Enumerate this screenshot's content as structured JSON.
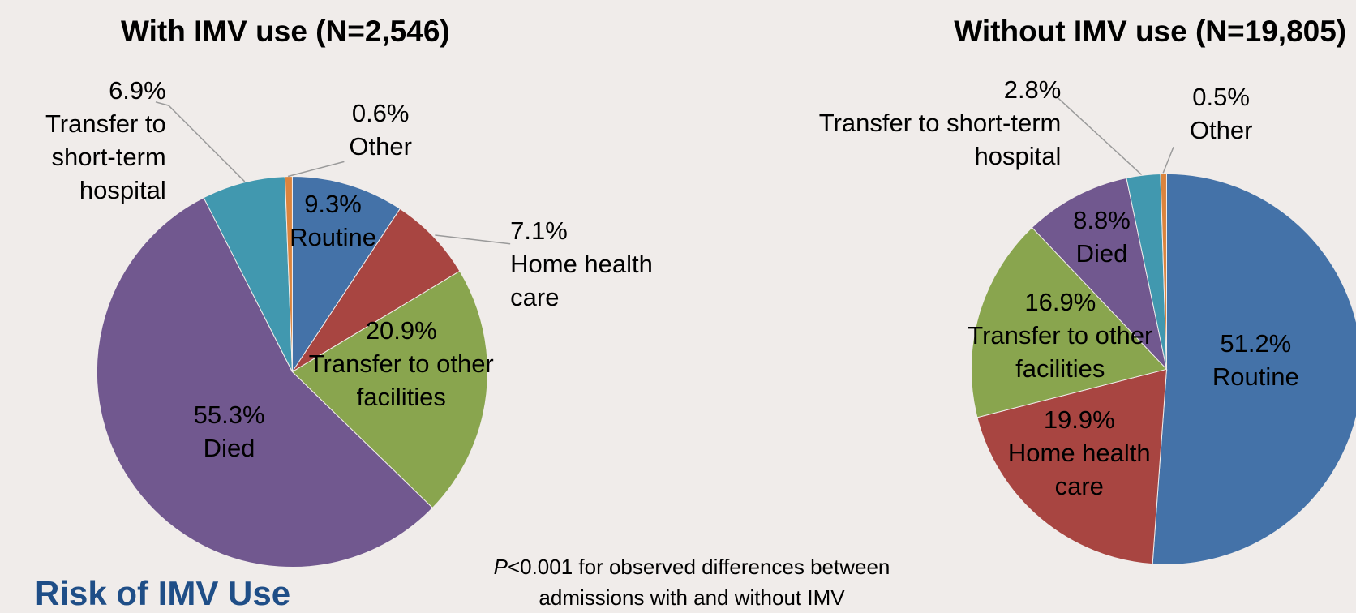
{
  "heading": "Risk of IMV Use",
  "footnote": {
    "italic": "P",
    "text": "<0.001 for observed differences between admissions with and without IMV"
  },
  "chart_data": [
    {
      "type": "pie",
      "title": "With IMV use (N=2,546)",
      "categories": [
        "Routine",
        "Home health care",
        "Transfer to other facilities",
        "Died",
        "Transfer to short-term hospital",
        "Other"
      ],
      "values": [
        9.3,
        7.1,
        20.9,
        55.3,
        6.9,
        0.6
      ],
      "value_labels": [
        "9.3%",
        "7.1%",
        "20.9%",
        "55.3%",
        "6.9%",
        "0.6%"
      ],
      "colors": [
        "#4472a8",
        "#a84541",
        "#89a54e",
        "#71588f",
        "#4198af",
        "#db843d"
      ]
    },
    {
      "type": "pie",
      "title": "Without IMV use (N=19,805)",
      "categories": [
        "Routine",
        "Home health care",
        "Transfer to other facilities",
        "Died",
        "Transfer to short-term hospital",
        "Other"
      ],
      "values": [
        51.2,
        19.9,
        16.9,
        8.8,
        2.8,
        0.5
      ],
      "value_labels": [
        "51.2%",
        "19.9%",
        "16.9%",
        "8.8%",
        "2.8%",
        "0.5%"
      ],
      "colors": [
        "#4472a8",
        "#a84541",
        "#89a54e",
        "#71588f",
        "#4198af",
        "#db843d"
      ]
    }
  ]
}
